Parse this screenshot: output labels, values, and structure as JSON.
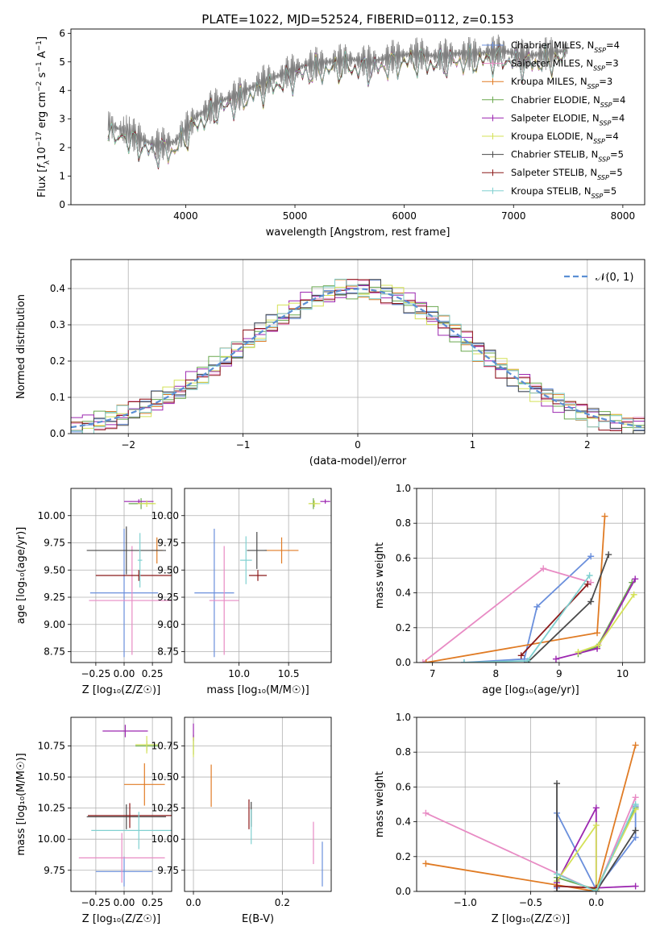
{
  "chart_data": [
    {
      "id": "spectrum",
      "type": "line",
      "title": "PLATE=1022, MJD=52524, FIBERID=0112, z=0.153",
      "xlabel": "wavelength [Angstrom, rest frame]",
      "ylabel_parts": [
        "Flux [",
        "f",
        "λ",
        "10",
        "−17",
        " erg cm",
        "−2",
        " s",
        "−1",
        " A",
        "−1",
        "]"
      ],
      "xlim": [
        2950,
        8200
      ],
      "ylim": [
        0,
        6.15
      ],
      "xticks": [
        4000,
        5000,
        6000,
        7000,
        8000
      ],
      "yticks": [
        0,
        1,
        2,
        3,
        4,
        5,
        6
      ],
      "data_curve": {
        "x": [
          3290,
          3500,
          3700,
          3900,
          4100,
          4300,
          4500,
          4700,
          4900,
          5100,
          5300,
          5500,
          5700,
          5900,
          6100,
          6300,
          6500,
          6700,
          6900,
          7100,
          7300,
          7500
        ],
        "y": [
          2.8,
          2.5,
          2.1,
          2.2,
          3.1,
          3.6,
          3.9,
          4.3,
          4.6,
          4.9,
          5.0,
          5.1,
          5.0,
          5.2,
          5.3,
          5.2,
          5.3,
          5.3,
          5.4,
          5.2,
          5.3,
          5.4
        ]
      },
      "legend_position": "upper right",
      "legend": [
        {
          "label": "Chabrier MILES, N",
          "sub": "SSP",
          "tail": "=4",
          "color": "#6a8fdc"
        },
        {
          "label": "Salpeter MILES, N",
          "sub": "SSP",
          "tail": "=3",
          "color": "#e88bc4"
        },
        {
          "label": "Kroupa MILES, N",
          "sub": "SSP",
          "tail": "=3",
          "color": "#e07b24"
        },
        {
          "label": "Chabrier ELODIE, N",
          "sub": "SSP",
          "tail": "=4",
          "color": "#6aa84f"
        },
        {
          "label": "Salpeter ELODIE, N",
          "sub": "SSP",
          "tail": "=4",
          "color": "#9c27b0"
        },
        {
          "label": "Kroupa ELODIE, N",
          "sub": "SSP",
          "tail": "=4",
          "color": "#d4e157"
        },
        {
          "label": "Chabrier STELIB, N",
          "sub": "SSP",
          "tail": "=5",
          "color": "#4a4a4a"
        },
        {
          "label": "Salpeter STELIB, N",
          "sub": "SSP",
          "tail": "=5",
          "color": "#8b1a1a"
        },
        {
          "label": "Kroupa STELIB, N",
          "sub": "SSP",
          "tail": "=5",
          "color": "#80d0d0"
        }
      ]
    },
    {
      "id": "residuals",
      "type": "histogram",
      "xlabel": "(data-model)/error",
      "ylabel": "Normed distribution",
      "xlim": [
        -2.5,
        2.5
      ],
      "ylim": [
        0,
        0.48
      ],
      "xticks": [
        -2,
        -1,
        0,
        1,
        2
      ],
      "yticks": [
        0.0,
        0.1,
        0.2,
        0.3,
        0.4
      ],
      "grid": true,
      "legend_position": "upper right",
      "legend": [
        {
          "label": "𝒩(0, 1)",
          "color": "#5b8fd4"
        }
      ],
      "bin_width": 0.1
    },
    {
      "id": "age-vs-Z",
      "type": "errorbar",
      "xlabel": "Z [log₁₀(Z/Z☉)]",
      "ylabel": "age  [log₁₀(age/yr)]",
      "xlim": [
        -0.47,
        0.42
      ],
      "ylim": [
        8.65,
        10.25
      ],
      "xticks": [
        -0.25,
        0.0,
        0.25
      ],
      "yticks": [
        8.75,
        9.0,
        9.25,
        9.5,
        9.75,
        10.0
      ],
      "grid": true,
      "points": [
        {
          "x": 0.0,
          "y": 9.29,
          "xerr": 0.3,
          "yerr": 0.59,
          "color": "#6a8fdc"
        },
        {
          "x": 0.07,
          "y": 9.22,
          "xerr": 0.38,
          "yerr": 0.5,
          "color": "#e88bc4"
        },
        {
          "x": 0.29,
          "y": 9.68,
          "xerr": 0.05,
          "yerr": 0.12,
          "color": "#e07b24"
        },
        {
          "x": 0.15,
          "y": 10.11,
          "xerr": 0.11,
          "yerr": 0.05,
          "color": "#6aa84f"
        },
        {
          "x": 0.13,
          "y": 10.13,
          "xerr": 0.13,
          "yerr": 0.02,
          "color": "#9c27b0"
        },
        {
          "x": 0.2,
          "y": 10.11,
          "xerr": 0.08,
          "yerr": 0.03,
          "color": "#d4e157"
        },
        {
          "x": 0.02,
          "y": 9.68,
          "xerr": 0.35,
          "yerr": 0.22,
          "color": "#4a4a4a"
        },
        {
          "x": 0.13,
          "y": 9.45,
          "xerr": 0.38,
          "yerr": 0.05,
          "color": "#8b1a1a"
        },
        {
          "x": 0.14,
          "y": 9.59,
          "xerr": 0.02,
          "yerr": 0.25,
          "color": "#80d0d0"
        }
      ]
    },
    {
      "id": "age-vs-mass",
      "type": "errorbar",
      "xlabel": "mass [log₁₀(M/M☉)]",
      "ylabel": "",
      "xlim": [
        9.45,
        10.93
      ],
      "ylim": [
        8.65,
        10.25
      ],
      "xticks": [
        10.0,
        10.5
      ],
      "yticks": [
        8.75,
        9.0,
        9.25,
        9.5,
        9.75,
        10.0
      ],
      "grid": true,
      "points": [
        {
          "x": 9.75,
          "y": 9.29,
          "xerr": 0.2,
          "yerr": 0.59,
          "color": "#6a8fdc"
        },
        {
          "x": 9.85,
          "y": 9.22,
          "xerr": 0.15,
          "yerr": 0.5,
          "color": "#e88bc4"
        },
        {
          "x": 10.43,
          "y": 9.68,
          "xerr": 0.17,
          "yerr": 0.12,
          "color": "#e07b24"
        },
        {
          "x": 10.75,
          "y": 10.11,
          "xerr": 0.04,
          "yerr": 0.05,
          "color": "#6aa84f"
        },
        {
          "x": 10.87,
          "y": 10.13,
          "xerr": 0.05,
          "yerr": 0.02,
          "color": "#9c27b0"
        },
        {
          "x": 10.76,
          "y": 10.11,
          "xerr": 0.06,
          "yerr": 0.03,
          "color": "#d4e157"
        },
        {
          "x": 10.18,
          "y": 9.68,
          "xerr": 0.1,
          "yerr": 0.17,
          "color": "#4a4a4a"
        },
        {
          "x": 10.19,
          "y": 9.45,
          "xerr": 0.09,
          "yerr": 0.05,
          "color": "#8b1a1a"
        },
        {
          "x": 10.07,
          "y": 9.59,
          "xerr": 0.06,
          "yerr": 0.22,
          "color": "#80d0d0"
        }
      ]
    },
    {
      "id": "weight-vs-age",
      "type": "line",
      "xlabel": "age  [log₁₀(age/yr)]",
      "ylabel": "mass weight",
      "xlim": [
        6.75,
        10.35
      ],
      "ylim": [
        0,
        1
      ],
      "xticks": [
        7,
        8,
        9,
        10
      ],
      "yticks": [
        0.0,
        0.2,
        0.4,
        0.6,
        0.8,
        1.0
      ],
      "grid": true,
      "series": [
        {
          "color": "#6a8fdc",
          "x": [
            7.5,
            8.45,
            8.65,
            9.5
          ],
          "y": [
            0.0,
            0.02,
            0.32,
            0.61
          ]
        },
        {
          "color": "#e88bc4",
          "x": [
            6.85,
            8.75,
            9.5
          ],
          "y": [
            0.0,
            0.54,
            0.46
          ]
        },
        {
          "color": "#e07b24",
          "x": [
            6.9,
            9.6,
            9.72
          ],
          "y": [
            0.0,
            0.17,
            0.84
          ]
        },
        {
          "color": "#6aa84f",
          "x": [
            9.3,
            9.6,
            10.15
          ],
          "y": [
            0.05,
            0.09,
            0.46
          ]
        },
        {
          "color": "#9c27b0",
          "x": [
            8.95,
            9.6,
            10.2
          ],
          "y": [
            0.02,
            0.08,
            0.48
          ]
        },
        {
          "color": "#d4e157",
          "x": [
            9.3,
            9.62,
            10.18
          ],
          "y": [
            0.06,
            0.1,
            0.39
          ]
        },
        {
          "color": "#4a4a4a",
          "x": [
            8.5,
            9.5,
            9.78
          ],
          "y": [
            0.0,
            0.35,
            0.62
          ]
        },
        {
          "color": "#8b1a1a",
          "x": [
            8.4,
            9.45
          ],
          "y": [
            0.04,
            0.45
          ]
        },
        {
          "color": "#80d0d0",
          "x": [
            7.5,
            8.5,
            9.48
          ],
          "y": [
            0.0,
            0.01,
            0.5
          ]
        }
      ]
    },
    {
      "id": "mass-vs-Z",
      "type": "errorbar",
      "xlabel": "Z [log₁₀(Z/Z☉)]",
      "ylabel": "mass [log₁₀(M/M☉)]",
      "xlim": [
        -0.47,
        0.42
      ],
      "ylim": [
        9.58,
        10.98
      ],
      "xticks": [
        -0.25,
        0.0,
        0.25
      ],
      "yticks": [
        9.75,
        10.0,
        10.25,
        10.5,
        10.75
      ],
      "grid": true,
      "points": [
        {
          "x": 0.0,
          "y": 9.74,
          "xerr": 0.25,
          "yerr": 0.12,
          "color": "#6a8fdc"
        },
        {
          "x": -0.02,
          "y": 9.85,
          "xerr": 0.38,
          "yerr": 0.2,
          "color": "#e88bc4"
        },
        {
          "x": 0.18,
          "y": 10.44,
          "xerr": 0.18,
          "yerr": 0.17,
          "color": "#e07b24"
        },
        {
          "x": 0.2,
          "y": 10.75,
          "xerr": 0.1,
          "yerr": 0.04,
          "color": "#6aa84f"
        },
        {
          "x": 0.01,
          "y": 10.87,
          "xerr": 0.2,
          "yerr": 0.05,
          "color": "#9c27b0"
        },
        {
          "x": 0.2,
          "y": 10.76,
          "xerr": 0.1,
          "yerr": 0.07,
          "color": "#d4e157"
        },
        {
          "x": 0.02,
          "y": 10.18,
          "xerr": 0.35,
          "yerr": 0.1,
          "color": "#4a4a4a"
        },
        {
          "x": 0.05,
          "y": 10.19,
          "xerr": 0.37,
          "yerr": 0.1,
          "color": "#8b1a1a"
        },
        {
          "x": 0.13,
          "y": 10.07,
          "xerr": 0.42,
          "yerr": 0.15,
          "color": "#80d0d0"
        }
      ]
    },
    {
      "id": "mass-vs-EBV",
      "type": "errorbar",
      "xlabel": "E(B-V)",
      "ylabel": "",
      "xlim": [
        -0.02,
        0.31
      ],
      "ylim": [
        9.58,
        10.98
      ],
      "xticks": [
        0.0,
        0.2
      ],
      "yticks": [
        9.75,
        10.0,
        10.25,
        10.5,
        10.75
      ],
      "grid": true,
      "points": [
        {
          "x": 0.29,
          "y": 9.8,
          "xerr": 0,
          "yerr": 0.18,
          "color": "#6a8fdc"
        },
        {
          "x": 0.27,
          "y": 9.97,
          "xerr": 0,
          "yerr": 0.17,
          "color": "#e88bc4"
        },
        {
          "x": 0.04,
          "y": 10.43,
          "xerr": 0,
          "yerr": 0.17,
          "color": "#e07b24"
        },
        {
          "x": 0.0,
          "y": 10.76,
          "xerr": 0,
          "yerr": 0.08,
          "color": "#6aa84f"
        },
        {
          "x": 0.0,
          "y": 10.86,
          "xerr": 0,
          "yerr": 0.07,
          "color": "#9c27b0"
        },
        {
          "x": 0.0,
          "y": 10.74,
          "xerr": 0,
          "yerr": 0.08,
          "color": "#d4e157"
        },
        {
          "x": 0.13,
          "y": 10.2,
          "xerr": 0,
          "yerr": 0.1,
          "color": "#4a4a4a"
        },
        {
          "x": 0.125,
          "y": 10.2,
          "xerr": 0,
          "yerr": 0.12,
          "color": "#8b1a1a"
        },
        {
          "x": 0.13,
          "y": 10.1,
          "xerr": 0,
          "yerr": 0.14,
          "color": "#80d0d0"
        }
      ]
    },
    {
      "id": "weight-vs-Z",
      "type": "line",
      "xlabel": "Z [log₁₀(Z/Z☉)]",
      "ylabel": "mass weight",
      "xlim": [
        -1.37,
        0.37
      ],
      "ylim": [
        0,
        1
      ],
      "xticks": [
        -1.0,
        -0.5,
        0.0
      ],
      "yticks": [
        0.0,
        0.2,
        0.4,
        0.6,
        0.8,
        1.0
      ],
      "grid": true,
      "series": [
        {
          "color": "#6a8fdc",
          "x": [
            -0.3,
            -0.3,
            0.0,
            0.3,
            0.3
          ],
          "y": [
            0.02,
            0.45,
            0.01,
            0.31,
            0.49
          ]
        },
        {
          "color": "#e88bc4",
          "x": [
            -1.3,
            0.0,
            0.3
          ],
          "y": [
            0.45,
            0.0,
            0.54
          ]
        },
        {
          "color": "#e07b24",
          "x": [
            -1.3,
            0.0,
            0.3
          ],
          "y": [
            0.16,
            0.0,
            0.84
          ]
        },
        {
          "color": "#6aa84f",
          "x": [
            -0.3,
            0.0,
            0.3
          ],
          "y": [
            0.08,
            0.01,
            0.48
          ]
        },
        {
          "color": "#9c27b0",
          "x": [
            -0.3,
            0.0,
            0.0,
            0.3
          ],
          "y": [
            0.05,
            0.48,
            0.02,
            0.03
          ]
        },
        {
          "color": "#d4e157",
          "x": [
            -0.3,
            0.0,
            0.0,
            0.3
          ],
          "y": [
            0.06,
            0.38,
            0.01,
            0.47
          ]
        },
        {
          "color": "#4a4a4a",
          "x": [
            -0.3,
            -0.3,
            0.0,
            0.3
          ],
          "y": [
            0.62,
            0.0,
            0.0,
            0.35
          ]
        },
        {
          "color": "#8b1a1a",
          "x": [
            -0.3,
            0.0
          ],
          "y": [
            0.03,
            0.02
          ]
        },
        {
          "color": "#80d0d0",
          "x": [
            -0.3,
            0.0,
            0.3
          ],
          "y": [
            0.1,
            0.0,
            0.5
          ]
        }
      ]
    }
  ]
}
